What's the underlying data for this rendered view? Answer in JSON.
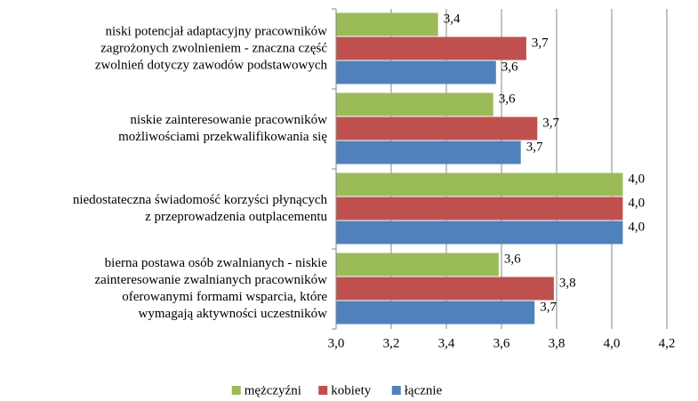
{
  "chart_data": {
    "type": "bar",
    "orientation": "horizontal",
    "categories": [
      [
        "niski potencjał adaptacyjny pracowników",
        "zagrożonych zwolnieniem - znaczna część",
        "zwolnień dotyczy zawodów podstawowych"
      ],
      [
        "niskie zainteresowanie pracowników",
        "możliwościami przekwalifikowania się"
      ],
      [
        "niedostateczna świadomość korzyści płynących",
        "z przeprowadzenia outplacementu"
      ],
      [
        "bierna postawa osób zwalnianych - niskie",
        "zainteresowanie zwalnianych pracowników",
        "oferowanymi formami wsparcia, które",
        "wymagają aktywności uczestników"
      ]
    ],
    "series": [
      {
        "name": "mężczyźni",
        "color": "#9bbb59",
        "values": [
          3.37,
          3.57,
          4.04,
          3.59
        ],
        "value_labels": [
          "3,4",
          "3,6",
          "4,0",
          "3,6"
        ]
      },
      {
        "name": "kobiety",
        "color": "#c0504d",
        "values": [
          3.69,
          3.73,
          4.04,
          3.79
        ],
        "value_labels": [
          "3,7",
          "3,7",
          "4,0",
          "3,8"
        ]
      },
      {
        "name": "łącznie",
        "color": "#4f81bd",
        "values": [
          3.58,
          3.67,
          4.04,
          3.72
        ],
        "value_labels": [
          "3,6",
          "3,7",
          "4,0",
          "3,7"
        ]
      }
    ],
    "xlim": [
      3.0,
      4.2
    ],
    "xticks": [
      {
        "value": 3.0,
        "label": "3,0"
      },
      {
        "value": 3.2,
        "label": "3,2"
      },
      {
        "value": 3.4,
        "label": "3,4"
      },
      {
        "value": 3.6,
        "label": "3,6"
      },
      {
        "value": 3.8,
        "label": "3,8"
      },
      {
        "value": 4.0,
        "label": "4,0"
      },
      {
        "value": 4.2,
        "label": "4,2"
      }
    ],
    "grid": true,
    "legend": "bottom"
  }
}
